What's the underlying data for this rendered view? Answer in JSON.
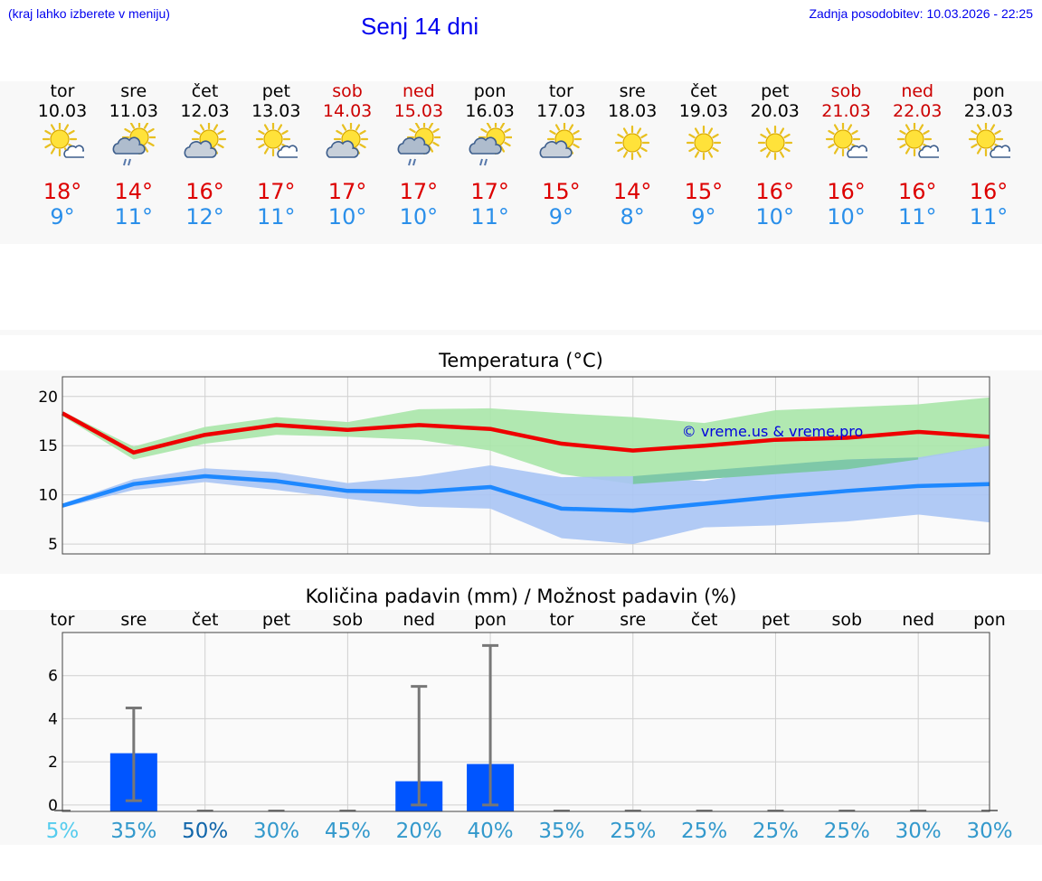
{
  "header": {
    "hint": "(kraj lahko izberete v meniju)",
    "title": "Senj 14 dni",
    "updated": "Zadnja posodobitev: 10.03.2026 - 22:25"
  },
  "days": [
    {
      "name": "tor",
      "date": "10.03",
      "weekend": false,
      "icon": "sun-cloud-icon",
      "tmax": "18°",
      "tmin": "9°"
    },
    {
      "name": "sre",
      "date": "11.03",
      "weekend": false,
      "icon": "rain-shower-icon",
      "tmax": "14°",
      "tmin": "11°"
    },
    {
      "name": "čet",
      "date": "12.03",
      "weekend": false,
      "icon": "partly-cloudy-icon",
      "tmax": "16°",
      "tmin": "12°"
    },
    {
      "name": "pet",
      "date": "13.03",
      "weekend": false,
      "icon": "sun-cloud-icon",
      "tmax": "17°",
      "tmin": "11°"
    },
    {
      "name": "sob",
      "date": "14.03",
      "weekend": true,
      "icon": "partly-cloudy-icon",
      "tmax": "17°",
      "tmin": "10°"
    },
    {
      "name": "ned",
      "date": "15.03",
      "weekend": true,
      "icon": "rain-shower-icon",
      "tmax": "17°",
      "tmin": "10°"
    },
    {
      "name": "pon",
      "date": "16.03",
      "weekend": false,
      "icon": "rain-shower-icon",
      "tmax": "17°",
      "tmin": "11°"
    },
    {
      "name": "tor",
      "date": "17.03",
      "weekend": false,
      "icon": "partly-cloudy-icon",
      "tmax": "15°",
      "tmin": "9°"
    },
    {
      "name": "sre",
      "date": "18.03",
      "weekend": false,
      "icon": "sun-icon",
      "tmax": "14°",
      "tmin": "8°"
    },
    {
      "name": "čet",
      "date": "19.03",
      "weekend": false,
      "icon": "sun-icon",
      "tmax": "15°",
      "tmin": "9°"
    },
    {
      "name": "pet",
      "date": "20.03",
      "weekend": false,
      "icon": "sun-icon",
      "tmax": "16°",
      "tmin": "10°"
    },
    {
      "name": "sob",
      "date": "21.03",
      "weekend": true,
      "icon": "sun-cloud-icon",
      "tmax": "16°",
      "tmin": "10°"
    },
    {
      "name": "ned",
      "date": "22.03",
      "weekend": true,
      "icon": "sun-cloud-icon",
      "tmax": "16°",
      "tmin": "11°"
    },
    {
      "name": "pon",
      "date": "23.03",
      "weekend": false,
      "icon": "sun-cloud-icon",
      "tmax": "16°",
      "tmin": "11°"
    }
  ],
  "colors": {
    "max_line": "#ee0000",
    "min_line": "#1e88ff",
    "max_band": "#a8e6a8",
    "min_band": "#a8c4f4",
    "overlap_band": "#7ec8a8",
    "precip_bar": "#0055ff",
    "error_bar": "#777777",
    "prob_colors": [
      "#55ccee",
      "#3399cc",
      "#1166aa"
    ]
  },
  "chart_data": [
    {
      "type": "line",
      "title": "Temperatura (°C)",
      "watermark": "© vreme.us & vreme.pro",
      "x": [
        0,
        1,
        2,
        3,
        4,
        5,
        6,
        7,
        8,
        9,
        10,
        11,
        12,
        13
      ],
      "ylim": [
        4,
        22
      ],
      "yticks": [
        5,
        10,
        15,
        20
      ],
      "series": [
        {
          "name": "max",
          "values": [
            18.3,
            14.3,
            16.1,
            17.1,
            16.6,
            17.1,
            16.7,
            15.2,
            14.5,
            15.0,
            15.6,
            15.8,
            16.4,
            15.9
          ],
          "low": [
            18.0,
            13.6,
            15.2,
            16.1,
            15.9,
            15.6,
            14.5,
            12.1,
            11.1,
            12.4,
            12.6,
            12.6,
            13.6,
            15.0
          ],
          "high": [
            18.5,
            14.9,
            16.9,
            17.9,
            17.4,
            18.7,
            18.8,
            18.3,
            17.9,
            17.3,
            18.6,
            18.9,
            19.2,
            19.9
          ]
        },
        {
          "name": "min",
          "values": [
            8.9,
            11.1,
            11.9,
            11.4,
            10.4,
            10.3,
            10.8,
            8.6,
            8.4,
            9.1,
            9.8,
            10.4,
            10.9,
            11.1
          ],
          "low": [
            8.7,
            10.5,
            11.3,
            10.5,
            9.6,
            8.8,
            8.6,
            5.6,
            5.0,
            6.7,
            6.9,
            7.3,
            8.0,
            7.2
          ],
          "high": [
            9.1,
            11.6,
            12.7,
            12.3,
            11.2,
            11.9,
            13.0,
            11.8,
            11.9,
            11.4,
            12.6,
            13.6,
            13.8,
            15.0
          ]
        }
      ]
    },
    {
      "type": "bar",
      "title": "Količina padavin (mm) / Možnost padavin (%)",
      "categories": [
        "tor",
        "sre",
        "čet",
        "pet",
        "sob",
        "ned",
        "pon",
        "tor",
        "sre",
        "čet",
        "pet",
        "sob",
        "ned",
        "pon"
      ],
      "values": [
        0,
        2.4,
        0,
        0,
        0,
        1.1,
        1.9,
        0,
        0,
        0,
        0,
        0,
        0,
        0
      ],
      "err_low": [
        0,
        0.2,
        0,
        0,
        0,
        0,
        0,
        0,
        0,
        0,
        0,
        0,
        0,
        0
      ],
      "err_high": [
        0,
        4.5,
        0,
        0,
        0,
        5.5,
        7.4,
        0,
        0,
        0,
        0,
        0,
        0,
        0
      ],
      "probability": [
        "5%",
        "35%",
        "50%",
        "30%",
        "45%",
        "20%",
        "40%",
        "35%",
        "25%",
        "25%",
        "25%",
        "25%",
        "30%",
        "30%"
      ],
      "probability_level": [
        0,
        1,
        2,
        1,
        1,
        1,
        1,
        1,
        1,
        1,
        1,
        1,
        1,
        1
      ],
      "ylim": [
        -0.3,
        8
      ],
      "yticks": [
        0,
        2,
        4,
        6
      ]
    }
  ]
}
